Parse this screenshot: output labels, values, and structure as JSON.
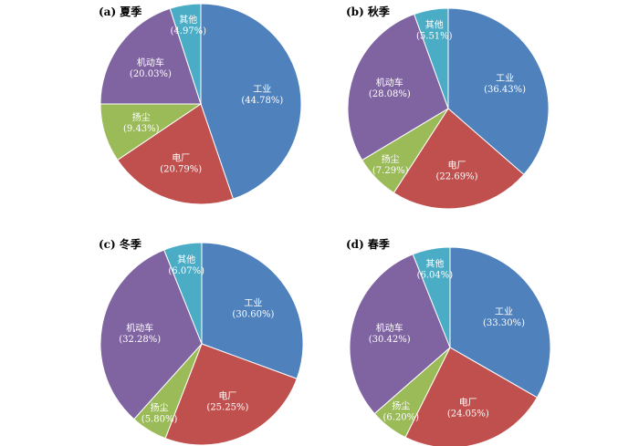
{
  "colors": {
    "工业": "#4F81BD",
    "电厂": "#C0504D",
    "扬尘": "#9BBB59",
    "机动车": "#8064A2",
    "其他": "#4BACC6"
  },
  "chart_data": [
    {
      "type": "pie",
      "title": "(a) 夏季",
      "slices": [
        {
          "label": "工业",
          "value": 44.78,
          "text": "(44.78%)"
        },
        {
          "label": "电厂",
          "value": 20.79,
          "text": "(20.79%)"
        },
        {
          "label": "扬尘",
          "value": 9.43,
          "text": "(9.43%)"
        },
        {
          "label": "机动车",
          "value": 20.03,
          "text": "(20.03%)"
        },
        {
          "label": "其他",
          "value": 4.97,
          "text": "(4.97%)"
        }
      ]
    },
    {
      "type": "pie",
      "title": "(b) 秋季",
      "slices": [
        {
          "label": "工业",
          "value": 36.43,
          "text": "(36.43%)"
        },
        {
          "label": "电厂",
          "value": 22.69,
          "text": "(22.69%)"
        },
        {
          "label": "扬尘",
          "value": 7.29,
          "text": "(7.29%)"
        },
        {
          "label": "机动车",
          "value": 28.08,
          "text": "(28.08%)"
        },
        {
          "label": "其他",
          "value": 5.51,
          "text": "(5.51%)"
        }
      ]
    },
    {
      "type": "pie",
      "title": "(c) 冬季",
      "slices": [
        {
          "label": "工业",
          "value": 30.6,
          "text": "(30.60%)"
        },
        {
          "label": "电厂",
          "value": 25.25,
          "text": "(25.25%)"
        },
        {
          "label": "扬尘",
          "value": 5.8,
          "text": "(5.80%)"
        },
        {
          "label": "机动车",
          "value": 32.28,
          "text": "(32.28%)"
        },
        {
          "label": "其他",
          "value": 6.07,
          "text": "(6.07%)"
        }
      ]
    },
    {
      "type": "pie",
      "title": "(d) 春季",
      "slices": [
        {
          "label": "工业",
          "value": 33.3,
          "text": "(33.30%)"
        },
        {
          "label": "电厂",
          "value": 24.05,
          "text": "(24.05%)"
        },
        {
          "label": "扬尘",
          "value": 6.2,
          "text": "(6.20%)"
        },
        {
          "label": "机动车",
          "value": 30.42,
          "text": "(30.42%)"
        },
        {
          "label": "其他",
          "value": 6.04,
          "text": "(6.04%)"
        }
      ]
    }
  ]
}
